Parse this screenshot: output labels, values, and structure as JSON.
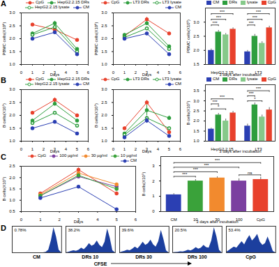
{
  "panel_labels": [
    "A",
    "B",
    "C",
    "D"
  ],
  "chart_data": [
    {
      "type": "line",
      "x_label": "Days",
      "y_label": "PBMC cells(X10⁶)",
      "legend": "top-right",
      "x": [
        1,
        3,
        5
      ],
      "xlim": [
        0,
        6
      ],
      "xticks": [
        0,
        1,
        2,
        3,
        4,
        5,
        6
      ],
      "ylim": [
        1,
        3
      ],
      "yticks": [
        {
          "value": 1,
          "label": "1.0"
        },
        {
          "value": 1.5,
          "label": "1.5"
        },
        {
          "value": 2,
          "label": "2.0"
        },
        {
          "value": 2.5,
          "label": "2.5"
        },
        {
          "value": 3,
          "label": "3.0"
        }
      ],
      "series": [
        {
          "name": "CpG",
          "color": "#e8412c",
          "marker": "circle",
          "values": [
            2.55,
            2.35,
            1.95
          ],
          "errors": [
            0.05,
            0.05,
            0.04
          ]
        },
        {
          "name": "HepG2.2.15 DRs",
          "color": "#2e9e3e",
          "marker": "circle",
          "values": [
            2.2,
            2.6,
            1.6
          ],
          "errors": [
            0.06,
            0.08,
            0.05
          ]
        },
        {
          "name": "HepG2.2.15 lysate",
          "color": "#2e9e3e",
          "marker": "circle-open",
          "values": [
            2.15,
            2.45,
            1.5
          ],
          "errors": [
            0.05,
            0.06,
            0.05
          ]
        },
        {
          "name": "CM",
          "color": "#2b3fb3",
          "marker": "circle",
          "values": [
            2.0,
            2.25,
            1.4
          ],
          "errors": [
            0.05,
            0.05,
            0.04
          ]
        }
      ]
    },
    {
      "type": "line",
      "x_label": "Days",
      "y_label": "PBMC cells(X10⁶)",
      "legend": "top-right",
      "x": [
        1,
        3,
        5
      ],
      "xlim": [
        0,
        6
      ],
      "xticks": [
        0,
        1,
        2,
        3,
        4,
        5,
        6
      ],
      "ylim": [
        1,
        3
      ],
      "yticks": [
        {
          "value": 1,
          "label": "1.0"
        },
        {
          "value": 1.5,
          "label": "1.5"
        },
        {
          "value": 2,
          "label": "2.0"
        },
        {
          "value": 2.5,
          "label": "2.5"
        },
        {
          "value": 3,
          "label": "3.0"
        }
      ],
      "series": [
        {
          "name": "CpG",
          "color": "#e8412c",
          "marker": "circle",
          "values": [
            2.1,
            2.75,
            2.2
          ],
          "errors": [
            0.05,
            0.08,
            0.05
          ]
        },
        {
          "name": "LT3 DRs",
          "color": "#2e9e3e",
          "marker": "circle",
          "values": [
            2.15,
            2.6,
            1.7
          ],
          "errors": [
            0.05,
            0.06,
            0.05
          ]
        },
        {
          "name": "LT3 lysate",
          "color": "#2e9e3e",
          "marker": "circle-open",
          "values": [
            2.05,
            2.4,
            1.6
          ],
          "errors": [
            0.05,
            0.06,
            0.05
          ]
        },
        {
          "name": "CM",
          "color": "#2b3fb3",
          "marker": "circle",
          "values": [
            2.0,
            2.2,
            1.4
          ],
          "errors": [
            0.04,
            0.05,
            0.04
          ]
        }
      ]
    },
    {
      "type": "bar",
      "x_label": "3 days after incubation",
      "y_label": "PBMC cells(X10⁶)",
      "legend": "top-right",
      "categories": [
        "HepG2.2.15",
        "LT3"
      ],
      "ylim": [
        1.5,
        3.5
      ],
      "yticks": [
        {
          "value": 1.5,
          "label": "1.5"
        },
        {
          "value": 2,
          "label": "2.0"
        },
        {
          "value": 2.5,
          "label": "2.5"
        },
        {
          "value": 3,
          "label": "3.0"
        }
      ],
      "series": [
        {
          "name": "CM",
          "color": "#2b3fb3",
          "values": [
            2.0,
            1.95
          ],
          "errors": [
            0.05,
            0.05
          ]
        },
        {
          "name": "DRs",
          "color": "#2e9e3e",
          "values": [
            2.65,
            2.5
          ],
          "errors": [
            0.06,
            0.07
          ]
        },
        {
          "name": "lysate",
          "color": "#86c98a",
          "values": [
            2.55,
            2.25
          ],
          "errors": [
            0.05,
            0.06
          ]
        },
        {
          "name": "CpG",
          "color": "#e8412c",
          "values": [
            2.75,
            2.8
          ],
          "errors": [
            0.05,
            0.06
          ]
        }
      ],
      "significance": [
        {
          "category": "HepG2.2.15",
          "from": "CM",
          "to": "DRs",
          "label": "***",
          "y": 2.9
        },
        {
          "category": "HepG2.2.15",
          "from": "CM",
          "to": "lysate",
          "label": "***",
          "y": 3.1
        },
        {
          "category": "HepG2.2.15",
          "from": "CM",
          "to": "CpG",
          "label": "***",
          "y": 3.3
        },
        {
          "category": "LT3",
          "from": "CM",
          "to": "DRs",
          "label": "***",
          "y": 2.9
        },
        {
          "category": "LT3",
          "from": "CM",
          "to": "lysate",
          "label": "***",
          "y": 3.1
        },
        {
          "category": "LT3",
          "from": "CM",
          "to": "CpG",
          "label": "***",
          "y": 3.3
        }
      ]
    },
    {
      "type": "line",
      "x_label": "Days",
      "y_label": "B cells(X10⁵)",
      "legend": "top-right",
      "x": [
        1,
        3,
        5
      ],
      "xlim": [
        0,
        6
      ],
      "xticks": [
        0,
        1,
        2,
        3,
        4,
        5,
        6
      ],
      "ylim": [
        1,
        3
      ],
      "yticks": [
        {
          "value": 1,
          "label": "1.0"
        },
        {
          "value": 1.5,
          "label": "1.5"
        },
        {
          "value": 2,
          "label": "2.0"
        },
        {
          "value": 2.5,
          "label": "2.5"
        },
        {
          "value": 3,
          "label": "3.0"
        }
      ],
      "series": [
        {
          "name": "CpG",
          "color": "#e8412c",
          "marker": "circle",
          "values": [
            2.1,
            2.6,
            2.0
          ],
          "errors": [
            0.05,
            0.08,
            0.06
          ]
        },
        {
          "name": "HepG2.2.15 DRs",
          "color": "#2e9e3e",
          "marker": "circle",
          "values": [
            1.8,
            2.45,
            1.8
          ],
          "errors": [
            0.05,
            0.08,
            0.06
          ]
        },
        {
          "name": "HepG2.2.15 lysate",
          "color": "#2e9e3e",
          "marker": "circle-open",
          "values": [
            1.7,
            2.1,
            1.6
          ],
          "errors": [
            0.05,
            0.06,
            0.05
          ]
        },
        {
          "name": "CM",
          "color": "#2b3fb3",
          "marker": "circle",
          "values": [
            1.5,
            1.75,
            1.3
          ],
          "errors": [
            0.05,
            0.06,
            0.05
          ]
        }
      ]
    },
    {
      "type": "line",
      "x_label": "Days",
      "y_label": "B cells(X10⁵)",
      "legend": "top-right",
      "x": [
        1,
        3,
        5
      ],
      "xlim": [
        0,
        6
      ],
      "xticks": [
        0,
        1,
        2,
        3,
        4,
        5,
        6
      ],
      "ylim": [
        1,
        3
      ],
      "yticks": [
        {
          "value": 1,
          "label": "1.0"
        },
        {
          "value": 1.5,
          "label": "1.5"
        },
        {
          "value": 2,
          "label": "2.0"
        },
        {
          "value": 2.5,
          "label": "2.5"
        },
        {
          "value": 3,
          "label": "3.0"
        }
      ],
      "series": [
        {
          "name": "CpG",
          "color": "#e8412c",
          "marker": "circle",
          "values": [
            1.5,
            2.5,
            1.35
          ],
          "errors": [
            0.05,
            0.08,
            0.05
          ]
        },
        {
          "name": "LT3 DRs",
          "color": "#2e9e3e",
          "marker": "circle",
          "values": [
            1.3,
            2.2,
            1.9
          ],
          "errors": [
            0.05,
            0.2,
            0.08
          ]
        },
        {
          "name": "LT3 lysate",
          "color": "#2e9e3e",
          "marker": "circle-open",
          "values": [
            1.25,
            1.9,
            1.5
          ],
          "errors": [
            0.05,
            0.08,
            0.05
          ]
        },
        {
          "name": "CM",
          "color": "#2b3fb3",
          "marker": "circle",
          "values": [
            1.15,
            1.8,
            1.2
          ],
          "errors": [
            0.05,
            0.1,
            0.05
          ]
        }
      ]
    },
    {
      "type": "bar",
      "x_label": "3 days after incubation",
      "y_label": "B cells(X10⁵)",
      "legend": "top-right",
      "categories": [
        "HepG2.2.15",
        "LT3"
      ],
      "ylim": [
        1,
        3.8
      ],
      "yticks": [
        {
          "value": 1,
          "label": "1.0"
        },
        {
          "value": 1.5,
          "label": "1.5"
        },
        {
          "value": 2,
          "label": "2.0"
        },
        {
          "value": 2.5,
          "label": "2.5"
        },
        {
          "value": 3,
          "label": "3.0"
        },
        {
          "value": 3.5,
          "label": "3.5"
        }
      ],
      "series": [
        {
          "name": "CM",
          "color": "#2b3fb3",
          "values": [
            1.6,
            1.75
          ],
          "errors": [
            0.05,
            0.1
          ]
        },
        {
          "name": "DRs",
          "color": "#2e9e3e",
          "values": [
            2.3,
            2.8
          ],
          "errors": [
            0.08,
            0.1
          ]
        },
        {
          "name": "lysate",
          "color": "#86c98a",
          "values": [
            2.0,
            2.2
          ],
          "errors": [
            0.1,
            0.1
          ]
        },
        {
          "name": "CpG",
          "color": "#e8412c",
          "values": [
            2.4,
            2.55
          ],
          "errors": [
            0.08,
            0.12
          ]
        }
      ],
      "significance": [
        {
          "category": "HepG2.2.15",
          "from": "CM",
          "to": "lysate",
          "label": "*",
          "y": 2.6
        },
        {
          "category": "HepG2.2.15",
          "from": "CM",
          "to": "DRs",
          "label": "***",
          "y": 2.85
        },
        {
          "category": "HepG2.2.15",
          "from": "CM",
          "to": "CpG",
          "label": "***",
          "y": 3.1
        },
        {
          "category": "LT3",
          "from": "CM",
          "to": "lysate",
          "label": "*",
          "y": 3.0
        },
        {
          "category": "LT3",
          "from": "CM",
          "to": "DRs",
          "label": "***",
          "y": 3.25
        },
        {
          "category": "LT3",
          "from": "CM",
          "to": "CpG",
          "label": "***",
          "y": 3.5
        }
      ]
    },
    {
      "type": "line",
      "x_label": "Days",
      "y_label": "B cells(X10⁵)",
      "legend": "top-right",
      "x": [
        1,
        3,
        5
      ],
      "xlim": [
        0,
        6
      ],
      "xticks": [
        0,
        1,
        2,
        3,
        4,
        5,
        6
      ],
      "ylim": [
        0.5,
        2.5
      ],
      "yticks": [
        {
          "value": 0.5,
          "label": "0.5"
        },
        {
          "value": 1,
          "label": "1.0"
        },
        {
          "value": 1.5,
          "label": "1.5"
        },
        {
          "value": 2,
          "label": "2.0"
        },
        {
          "value": 2.5,
          "label": "2.5"
        }
      ],
      "series": [
        {
          "name": "CpG",
          "color": "#e8412c",
          "marker": "circle",
          "values": [
            1.3,
            2.35,
            1.3
          ],
          "errors": [
            0.05,
            0.08,
            0.06
          ]
        },
        {
          "name": "100 µg/ml",
          "color": "#7b3fa0",
          "marker": "circle",
          "values": [
            1.2,
            2.05,
            1.6
          ],
          "errors": [
            0.05,
            0.08,
            0.06
          ]
        },
        {
          "name": "30 µg/ml",
          "color": "#f28a2e",
          "marker": "circle",
          "values": [
            1.25,
            2.2,
            1.7
          ],
          "errors": [
            0.05,
            0.06,
            0.06
          ]
        },
        {
          "name": "10 µg/ml",
          "color": "#3aa23a",
          "marker": "circle",
          "values": [
            1.2,
            2.1,
            1.5
          ],
          "errors": [
            0.05,
            0.07,
            0.05
          ]
        },
        {
          "name": "CM",
          "color": "#2b3fb3",
          "marker": "circle",
          "values": [
            1.1,
            1.6,
            0.6
          ],
          "errors": [
            0.05,
            0.06,
            0.04
          ]
        }
      ]
    },
    {
      "type": "bar",
      "x_label": "3 days after incubation",
      "y_label": "B cells(X10⁵)",
      "categories": [
        "CM",
        "10",
        "30",
        "100",
        "CpG"
      ],
      "values": [
        1.1,
        2.0,
        2.2,
        2.0,
        2.1
      ],
      "errors": [
        0.08,
        0.1,
        0.08,
        0.15,
        0.15
      ],
      "colors": [
        "#2b3fb3",
        "#3aa23a",
        "#f28a2e",
        "#7b3fa0",
        "#e8412c"
      ],
      "ylim": [
        0,
        3.6
      ],
      "yticks": [
        0,
        1,
        2,
        3
      ],
      "significance": [
        {
          "from": "CM",
          "to": "10",
          "label": "***",
          "y": 2.3
        },
        {
          "from": "CM",
          "to": "30",
          "label": "***",
          "y": 2.6
        },
        {
          "from": "CM",
          "to": "100",
          "label": "***",
          "y": 2.9
        },
        {
          "from": "CM",
          "to": "CpG",
          "label": "***",
          "y": 3.2
        },
        {
          "from": "100",
          "to": "CpG",
          "label": "ns",
          "y": 2.4
        }
      ]
    },
    {
      "type": "area",
      "x_label": "CFSE",
      "tick_labels": false,
      "color": "#1c3f9e",
      "x": [
        1,
        2,
        3,
        4,
        5,
        6,
        7,
        8,
        9,
        10,
        11,
        12,
        13,
        14,
        15,
        16,
        17,
        18,
        19,
        20
      ],
      "xlim": [
        1,
        20
      ],
      "ylim": [
        0,
        100
      ],
      "panels": [
        {
          "title": "CM",
          "gate_label": "0.78%",
          "values": [
            0,
            0,
            0,
            0,
            0,
            0,
            0,
            0,
            0,
            0,
            0,
            0,
            0,
            2,
            10,
            45,
            95,
            60,
            10,
            0
          ]
        },
        {
          "title": "DRs 10",
          "gate_label": "38.2%",
          "values": [
            0,
            2,
            5,
            8,
            6,
            10,
            18,
            12,
            22,
            35,
            25,
            30,
            45,
            28,
            20,
            40,
            90,
            55,
            8,
            0
          ]
        },
        {
          "title": "DRs 30",
          "gate_label": "39.6%",
          "values": [
            0,
            3,
            6,
            10,
            8,
            14,
            22,
            15,
            26,
            40,
            28,
            34,
            48,
            30,
            22,
            42,
            85,
            50,
            7,
            0
          ]
        },
        {
          "title": "DRs 100",
          "gate_label": "20.5%",
          "values": [
            0,
            1,
            2,
            4,
            3,
            6,
            10,
            7,
            12,
            20,
            14,
            18,
            28,
            20,
            18,
            45,
            95,
            60,
            9,
            0
          ]
        },
        {
          "title": "CpG",
          "gate_label": "53.4%",
          "values": [
            2,
            8,
            15,
            22,
            18,
            30,
            42,
            30,
            50,
            65,
            45,
            55,
            70,
            40,
            28,
            35,
            60,
            35,
            5,
            0
          ]
        }
      ]
    }
  ]
}
